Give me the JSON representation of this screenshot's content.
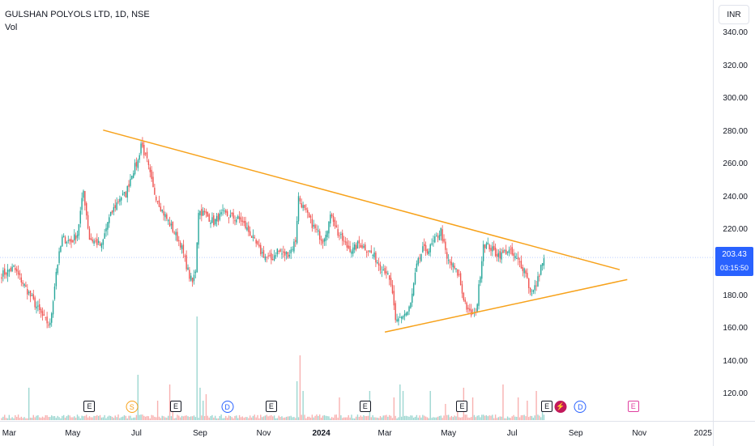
{
  "chart_data": {
    "type": "candlestick",
    "symbol_title": "GULSHAN POLYOLS LTD, 1D, NSE",
    "volume_label": "Vol",
    "currency": "INR",
    "y_ticks": [
      "340.00",
      "320.00",
      "300.00",
      "280.00",
      "260.00",
      "240.00",
      "220.00",
      "200.00",
      "180.00",
      "160.00",
      "140.00",
      "120.00"
    ],
    "ylim": [
      104,
      346
    ],
    "x_ticks": [
      {
        "label": "Mar",
        "i": 5,
        "bold": false
      },
      {
        "label": "May",
        "i": 47,
        "bold": false
      },
      {
        "label": "Jul",
        "i": 89,
        "bold": false
      },
      {
        "label": "Sep",
        "i": 131,
        "bold": false
      },
      {
        "label": "Nov",
        "i": 173,
        "bold": false
      },
      {
        "label": "2024",
        "i": 211,
        "bold": true
      },
      {
        "label": "Mar",
        "i": 253,
        "bold": false
      },
      {
        "label": "May",
        "i": 295,
        "bold": false
      },
      {
        "label": "Jul",
        "i": 337,
        "bold": false
      },
      {
        "label": "Sep",
        "i": 379,
        "bold": false
      },
      {
        "label": "Nov",
        "i": 421,
        "bold": false
      },
      {
        "label": "2025",
        "i": 463,
        "bold": false
      }
    ],
    "last_price": "203.43",
    "countdown": "03:15:50",
    "anchors": [
      [
        0,
        193
      ],
      [
        8,
        197
      ],
      [
        14,
        188
      ],
      [
        22,
        175
      ],
      [
        28,
        166
      ],
      [
        32,
        162
      ],
      [
        36,
        195
      ],
      [
        40,
        215
      ],
      [
        46,
        213
      ],
      [
        50,
        218
      ],
      [
        54,
        244
      ],
      [
        58,
        215
      ],
      [
        62,
        213
      ],
      [
        66,
        210
      ],
      [
        70,
        225
      ],
      [
        74,
        233
      ],
      [
        78,
        240
      ],
      [
        82,
        242
      ],
      [
        86,
        255
      ],
      [
        90,
        262
      ],
      [
        92,
        273
      ],
      [
        96,
        262
      ],
      [
        100,
        245
      ],
      [
        106,
        232
      ],
      [
        112,
        222
      ],
      [
        118,
        212
      ],
      [
        124,
        192
      ],
      [
        126,
        188
      ],
      [
        128,
        196
      ],
      [
        130,
        232
      ],
      [
        134,
        230
      ],
      [
        140,
        225
      ],
      [
        146,
        230
      ],
      [
        152,
        228
      ],
      [
        158,
        226
      ],
      [
        164,
        218
      ],
      [
        170,
        208
      ],
      [
        174,
        204
      ],
      [
        178,
        202
      ],
      [
        182,
        208
      ],
      [
        186,
        205
      ],
      [
        190,
        206
      ],
      [
        194,
        214
      ],
      [
        196,
        240
      ],
      [
        200,
        232
      ],
      [
        206,
        222
      ],
      [
        212,
        214
      ],
      [
        218,
        230
      ],
      [
        222,
        218
      ],
      [
        228,
        210
      ],
      [
        232,
        208
      ],
      [
        236,
        212
      ],
      [
        242,
        208
      ],
      [
        246,
        204
      ],
      [
        250,
        198
      ],
      [
        254,
        195
      ],
      [
        258,
        182
      ],
      [
        260,
        163
      ],
      [
        264,
        168
      ],
      [
        268,
        170
      ],
      [
        270,
        175
      ],
      [
        274,
        198
      ],
      [
        278,
        208
      ],
      [
        282,
        208
      ],
      [
        286,
        214
      ],
      [
        290,
        220
      ],
      [
        294,
        202
      ],
      [
        298,
        198
      ],
      [
        302,
        192
      ],
      [
        304,
        182
      ],
      [
        306,
        176
      ],
      [
        308,
        170
      ],
      [
        312,
        168
      ],
      [
        314,
        176
      ],
      [
        316,
        194
      ],
      [
        318,
        212
      ],
      [
        322,
        210
      ],
      [
        326,
        206
      ],
      [
        330,
        205
      ],
      [
        334,
        208
      ],
      [
        338,
        204
      ],
      [
        342,
        200
      ],
      [
        346,
        195
      ],
      [
        348,
        186
      ],
      [
        350,
        181
      ],
      [
        352,
        185
      ],
      [
        354,
        190
      ],
      [
        356,
        198
      ],
      [
        358,
        203
      ]
    ],
    "volume_spikes": {
      "18": 10,
      "90": 14,
      "103": 6,
      "111": 11,
      "113": 6,
      "129": 32,
      "131": 10,
      "133": 6,
      "135": 8,
      "195": 12,
      "197": 20,
      "199": 9,
      "223": 7,
      "243": 9,
      "259": 7,
      "263": 11,
      "265": 9,
      "283": 9,
      "293": 5,
      "301": 4,
      "305": 10,
      "311": 7,
      "331": 11,
      "341": 7,
      "347": 6,
      "353": 9,
      "357": 4
    }
  },
  "events": [
    {
      "type": "e",
      "label": "E",
      "i": 58
    },
    {
      "type": "s",
      "label": "S",
      "i": 86
    },
    {
      "type": "e",
      "label": "E",
      "i": 115
    },
    {
      "type": "d",
      "label": "D",
      "i": 149
    },
    {
      "type": "e",
      "label": "E",
      "i": 178
    },
    {
      "type": "e",
      "label": "E",
      "i": 240
    },
    {
      "type": "e",
      "label": "E",
      "i": 304
    },
    {
      "type": "e",
      "label": "E",
      "i": 360
    },
    {
      "type": "bolt",
      "label": "⚡",
      "i": 369
    },
    {
      "type": "d",
      "label": "D",
      "i": 382
    },
    {
      "type": "e-future",
      "label": "E",
      "i": 417
    }
  ],
  "trendlines": [
    {
      "name": "upper-trendline",
      "color": "#f7a21b",
      "from": {
        "i": 67,
        "p": 281
      },
      "to": {
        "i": 408,
        "p": 196
      }
    },
    {
      "name": "lower-trendline",
      "color": "#f7a21b",
      "from": {
        "i": 253,
        "p": 158
      },
      "to": {
        "i": 413,
        "p": 190
      }
    }
  ],
  "colors": {
    "up": "#26a69a",
    "down": "#ef5350",
    "vol_up": "#26a69a",
    "vol_down": "#ef5350",
    "accent": "#2962ff"
  }
}
